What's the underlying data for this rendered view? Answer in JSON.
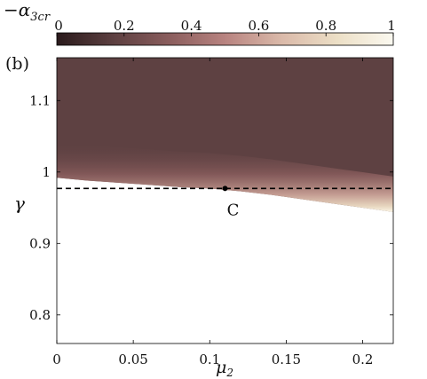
{
  "chart_data": {
    "type": "heatmap",
    "panel_label": "(b)",
    "colorbar": {
      "label_prefix": "−α",
      "label_subscript": "3cr",
      "range": [
        0,
        1
      ],
      "ticks": [
        "0",
        "0.2",
        "0.4",
        "0.6",
        "0.8",
        "1"
      ],
      "tick_values": [
        0,
        0.2,
        0.4,
        0.6,
        0.8,
        1
      ],
      "colors": [
        "#2a1a1c",
        "#5c3f40",
        "#8a5d5d",
        "#b88380",
        "#dab9a9",
        "#ecdfc6",
        "#fbf9f0"
      ]
    },
    "x_axis": {
      "label_base": "μ",
      "label_subscript": "2",
      "range": [
        0,
        0.22
      ],
      "ticks": [
        "0",
        "0.05",
        "0.1",
        "0.15",
        "0.2"
      ],
      "tick_values": [
        0,
        0.05,
        0.1,
        0.15,
        0.2
      ]
    },
    "y_axis": {
      "label": "γ",
      "range": [
        0.76,
        1.16
      ],
      "ticks": [
        "0.8",
        "0.9",
        "1",
        "1.1"
      ],
      "tick_values": [
        0.8,
        0.9,
        1.0,
        1.1
      ]
    },
    "threshold_line": {
      "y": 0.977,
      "style": "dashed"
    },
    "critical_point": {
      "label": "C",
      "x": 0.11,
      "y": 0.977
    },
    "boundary_curve": {
      "x": [
        0,
        0.02,
        0.04,
        0.06,
        0.08,
        0.1,
        0.12,
        0.14,
        0.16,
        0.18,
        0.2,
        0.22
      ],
      "gamma": [
        0.992,
        0.988,
        0.985,
        0.982,
        0.979,
        0.977,
        0.973,
        0.968,
        0.962,
        0.956,
        0.95,
        0.944
      ]
    },
    "region_above": {
      "value_near_boundary": 0.95,
      "value_interior": 0.25
    },
    "region_below": {
      "value": 1.0
    }
  }
}
